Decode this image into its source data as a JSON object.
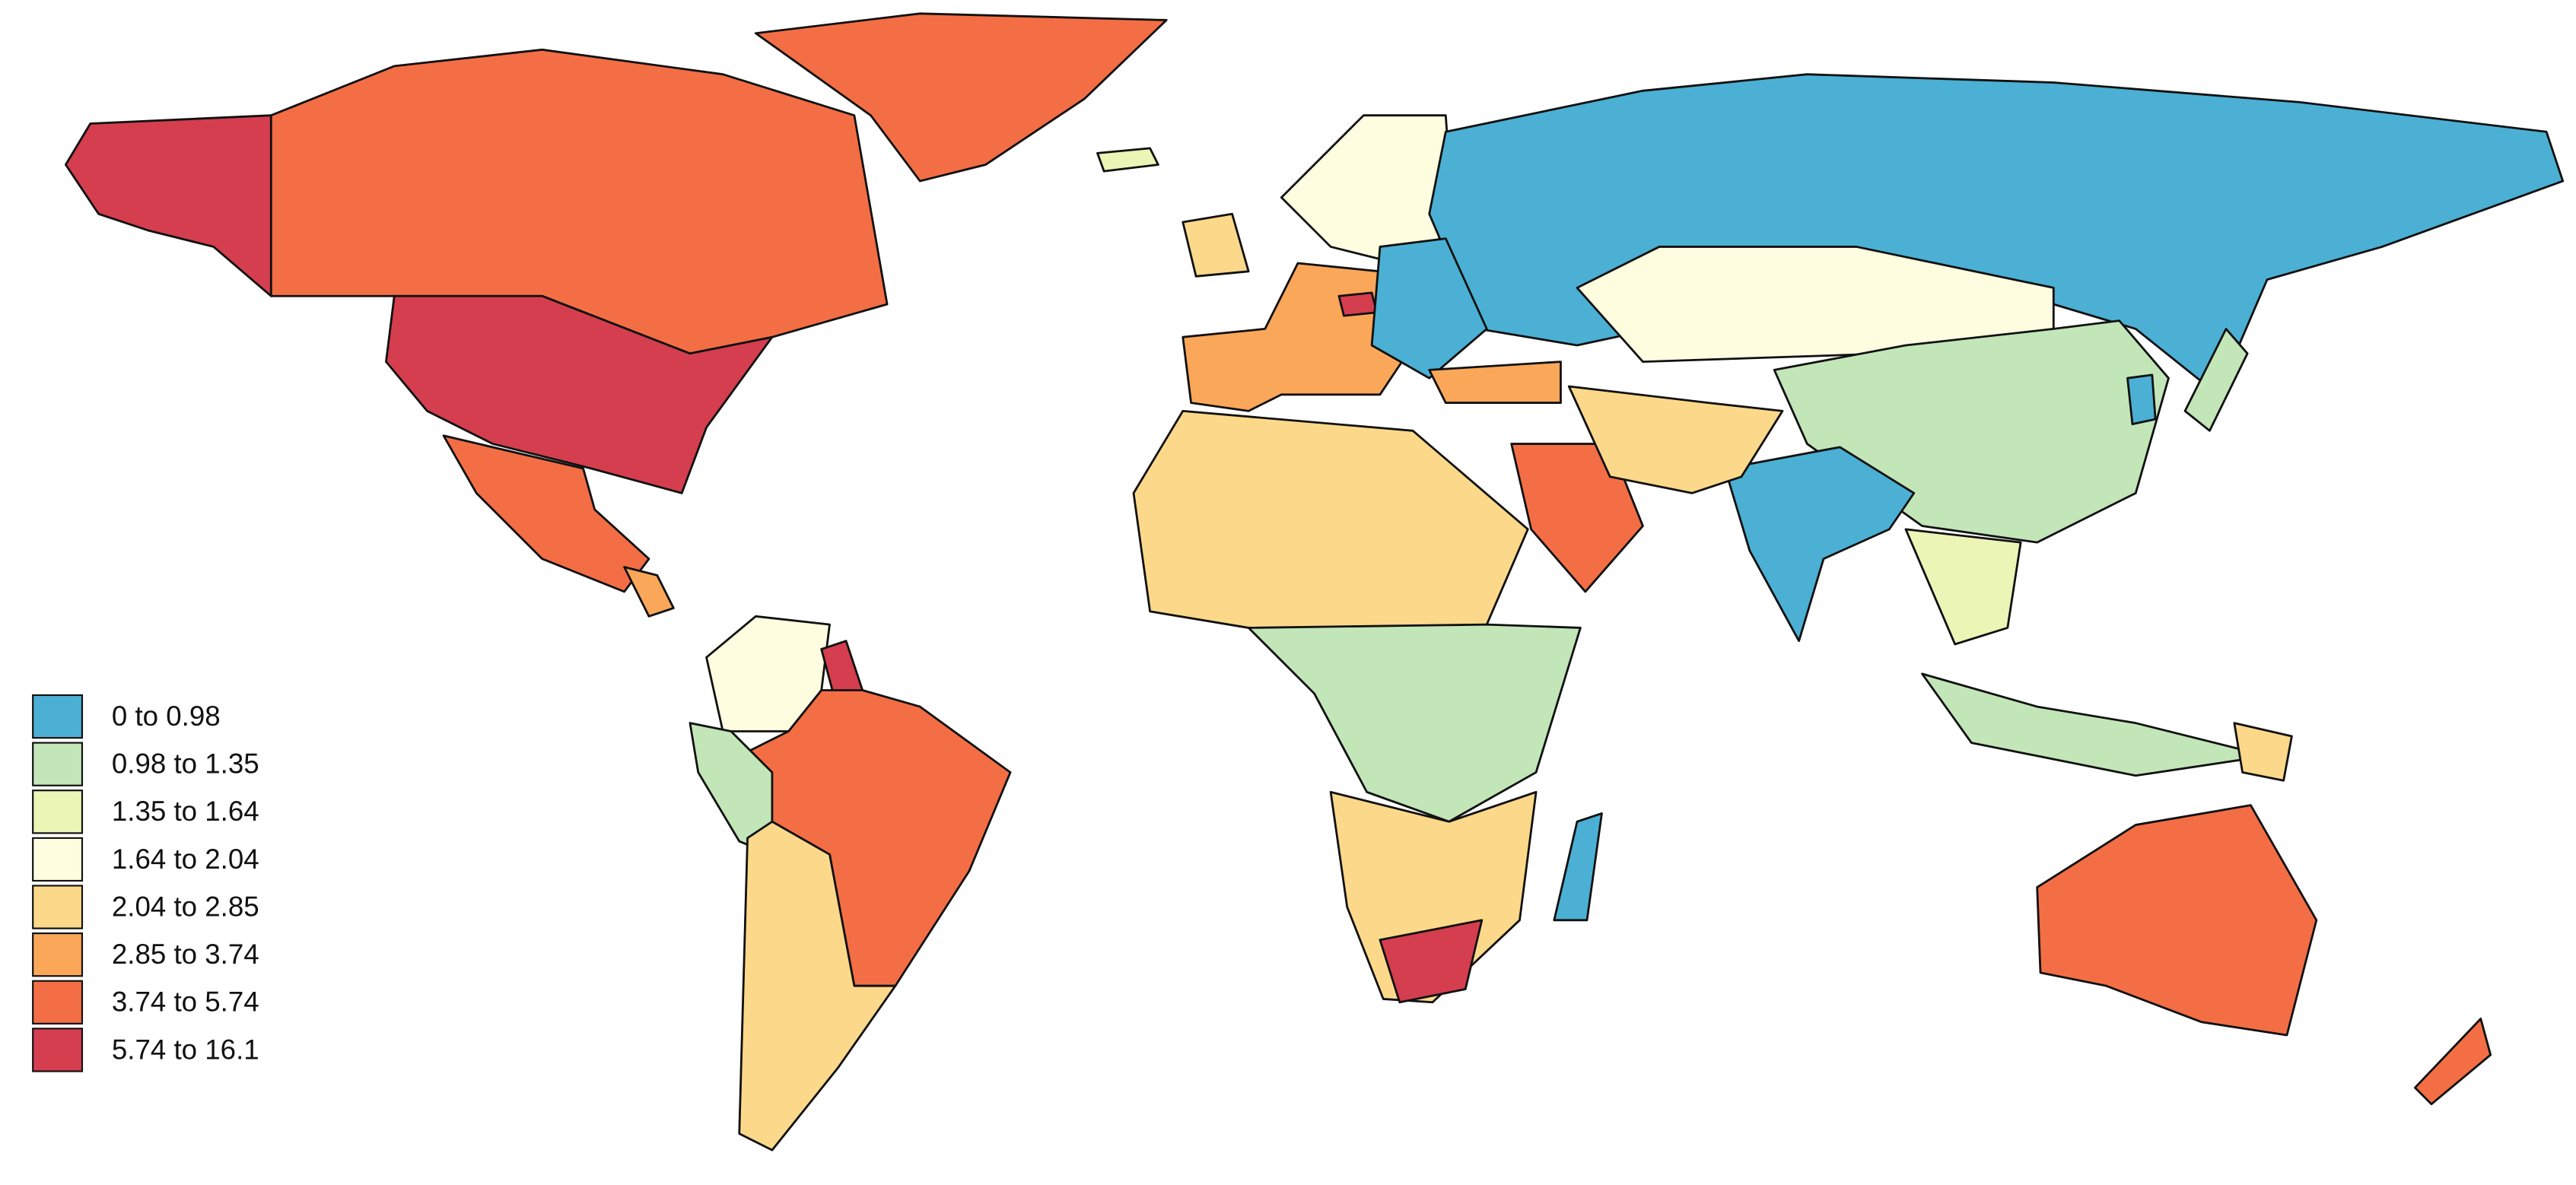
{
  "legend": {
    "items": [
      {
        "label": "0 to 0.98",
        "color": "#4bb0d4"
      },
      {
        "label": "0.98 to 1.35",
        "color": "#c3e6b8"
      },
      {
        "label": "1.35 to 1.64",
        "color": "#ebf5b5"
      },
      {
        "label": "1.64 to 2.04",
        "color": "#fefde0"
      },
      {
        "label": "2.04 to 2.85",
        "color": "#fcd98a"
      },
      {
        "label": "2.85 to 3.74",
        "color": "#fba75a"
      },
      {
        "label": "3.74 to 5.74",
        "color": "#f46e45"
      },
      {
        "label": "5.74 to 16.1",
        "color": "#d53e4f"
      }
    ]
  }
}
